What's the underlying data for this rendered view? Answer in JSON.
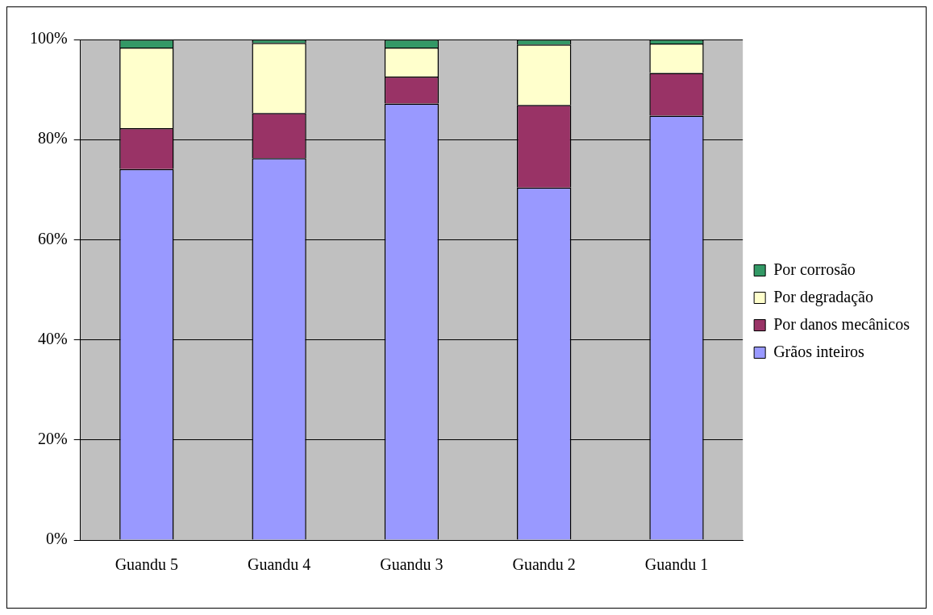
{
  "chart_data": {
    "type": "bar",
    "stacked": true,
    "categories": [
      "Guandu 5",
      "Guandu 4",
      "Guandu 3",
      "Guandu 2",
      "Guandu 1"
    ],
    "series": [
      {
        "name": "Grãos inteiros",
        "color": "#9999ff",
        "values": [
          74.1,
          76.3,
          87.2,
          70.4,
          84.8
        ]
      },
      {
        "name": "Por danos mecânicos",
        "color": "#993366",
        "values": [
          8.2,
          9.0,
          5.4,
          16.5,
          8.5
        ]
      },
      {
        "name": "Por degradação",
        "color": "#ffffcc",
        "values": [
          16.1,
          14.0,
          5.8,
          12.1,
          5.9
        ]
      },
      {
        "name": "Por corrosão",
        "color": "#339966",
        "values": [
          1.6,
          0.7,
          1.6,
          1.0,
          0.8
        ]
      }
    ],
    "ylim": [
      0,
      100
    ],
    "yticks": [
      {
        "value": 0,
        "label": "0%"
      },
      {
        "value": 20,
        "label": "20%"
      },
      {
        "value": 40,
        "label": "40%"
      },
      {
        "value": 60,
        "label": "60%"
      },
      {
        "value": 80,
        "label": "80%"
      },
      {
        "value": 100,
        "label": "100%"
      }
    ],
    "grid": "y",
    "legend": "right"
  }
}
